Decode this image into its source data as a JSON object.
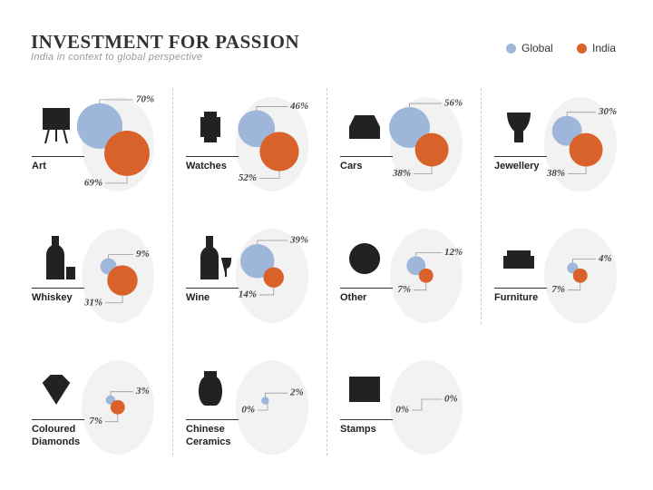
{
  "chart_data": {
    "type": "bubble",
    "title": "INVESTMENT FOR PASSION",
    "subtitle": "India in context to global perspective",
    "legend": "top-right",
    "categories": [
      "Art",
      "Watches",
      "Cars",
      "Jewellery",
      "Whiskey",
      "Wine",
      "Other",
      "Furniture",
      "Coloured Diamonds",
      "Chinese Ceramics",
      "Stamps"
    ],
    "series": [
      {
        "name": "Global",
        "color": "#9db6da",
        "values": [
          70,
          46,
          56,
          30,
          9,
          39,
          12,
          4,
          3,
          2,
          0
        ],
        "value_labels": [
          "70%",
          "46%",
          "56%",
          "30%",
          "9%",
          "39%",
          "12%",
          "4%",
          "3%",
          "2%",
          "0%"
        ]
      },
      {
        "name": "India",
        "color": "#d8622a",
        "values": [
          69,
          52,
          38,
          38,
          31,
          14,
          7,
          7,
          7,
          0,
          0
        ],
        "value_labels": [
          "69%",
          "52%",
          "38%",
          "38%",
          "31%",
          "14%",
          "7%",
          "7%",
          "7%",
          "0%",
          "0%"
        ]
      }
    ]
  }
}
